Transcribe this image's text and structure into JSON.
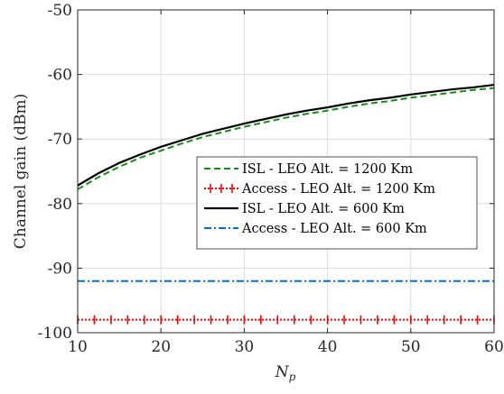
{
  "chart_data": {
    "type": "line",
    "xlabel": "N",
    "xlabel_sub": "p",
    "ylabel": "Channel gain (dBm)",
    "xlim": [
      10,
      60
    ],
    "ylim": [
      -100,
      -50
    ],
    "xticks": [
      10,
      20,
      30,
      40,
      50,
      60
    ],
    "yticks": [
      -100,
      -90,
      -80,
      -70,
      -60,
      -50
    ],
    "grid": true,
    "legend_position": "right-middle",
    "x": [
      10,
      12.5,
      15,
      17.5,
      20,
      22.5,
      25,
      27.5,
      30,
      32.5,
      35,
      37.5,
      40,
      42.5,
      45,
      47.5,
      50,
      52.5,
      55,
      57.5,
      60
    ],
    "series": [
      {
        "name": "ISL - LEO Alt. = 1200 Km",
        "color": "#1a8a1a",
        "style": "dashed",
        "values": [
          -77.8,
          -75.9,
          -74.3,
          -72.9,
          -71.8,
          -70.7,
          -69.7,
          -68.9,
          -68.1,
          -67.4,
          -66.7,
          -66.1,
          -65.6,
          -65.0,
          -64.5,
          -64.1,
          -63.6,
          -63.2,
          -62.8,
          -62.4,
          -62.1
        ]
      },
      {
        "name": "Access - LEO Alt. = 1200 Km",
        "color": "#ff0000",
        "style": "dotted-markers",
        "values": [
          -98,
          -98,
          -98,
          -98,
          -98,
          -98,
          -98,
          -98,
          -98,
          -98,
          -98,
          -98,
          -98,
          -98,
          -98,
          -98,
          -98,
          -98,
          -98,
          -98,
          -98
        ]
      },
      {
        "name": "ISL - LEO Alt. = 600 Km",
        "color": "#000000",
        "style": "solid",
        "values": [
          -77.2,
          -75.3,
          -73.7,
          -72.4,
          -71.2,
          -70.2,
          -69.2,
          -68.4,
          -67.6,
          -66.9,
          -66.2,
          -65.6,
          -65.1,
          -64.5,
          -64.0,
          -63.6,
          -63.1,
          -62.7,
          -62.3,
          -62.0,
          -61.6
        ]
      },
      {
        "name": "Access - LEO Alt. = 600 Km",
        "color": "#0072bd",
        "style": "dashdot",
        "values": [
          -92,
          -92,
          -92,
          -92,
          -92,
          -92,
          -92,
          -92,
          -92,
          -92,
          -92,
          -92,
          -92,
          -92,
          -92,
          -92,
          -92,
          -92,
          -92,
          -92,
          -92
        ]
      }
    ]
  }
}
